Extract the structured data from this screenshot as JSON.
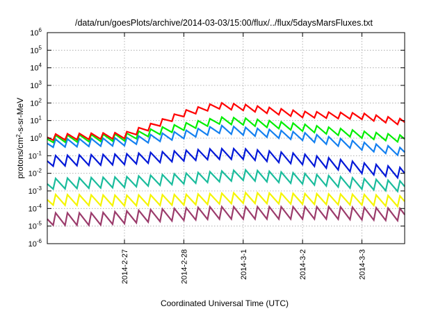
{
  "chart_data": {
    "type": "line",
    "title": "/data/run/goesPlots/archive/2014-03-03/15:00/flux/../flux/5daysMarsFluxes.txt",
    "xlabel": "Coordinated Universal Time (UTC)",
    "ylabel_parts": [
      "protons/cm",
      "2",
      "-s-sr-MeV"
    ],
    "yscale": "log",
    "ylim": [
      1e-06,
      1000000.0
    ],
    "ytick_exponents": [
      -6,
      -5,
      -4,
      -3,
      -2,
      -1,
      0,
      1,
      2,
      3,
      4,
      5,
      6
    ],
    "ytick_base": "10",
    "xlim_days": [
      -2.3,
      3.72
    ],
    "x_ticks": [
      {
        "label": "2014-2-27",
        "day": -1
      },
      {
        "label": "2014-2-28",
        "day": 0
      },
      {
        "label": "2014-3-1",
        "day": 1
      },
      {
        "label": "2014-3-2",
        "day": 2
      },
      {
        "label": "2014-3-3",
        "day": 3
      }
    ],
    "grid": true,
    "sawtooth_period_days": 0.2,
    "series": [
      {
        "color": "#9b3b6b",
        "points": [
          [
            -2.3,
            -4.6
          ],
          [
            -1.5,
            -4.6
          ],
          [
            -0.5,
            -4.4
          ],
          [
            0.5,
            -4.25
          ],
          [
            1.5,
            -4.25
          ],
          [
            2.5,
            -4.25
          ],
          [
            3.72,
            -4.35
          ]
        ],
        "amplitude": 0.7
      },
      {
        "color": "#f5f500",
        "points": [
          [
            -2.3,
            -3.5
          ],
          [
            -1.0,
            -3.55
          ],
          [
            0.0,
            -3.5
          ],
          [
            1.0,
            -3.4
          ],
          [
            2.0,
            -3.45
          ],
          [
            3.0,
            -3.5
          ],
          [
            3.72,
            -3.6
          ]
        ],
        "amplitude": 0.6
      },
      {
        "color": "#1abc9c",
        "points": [
          [
            -2.3,
            -2.6
          ],
          [
            -1.0,
            -2.5
          ],
          [
            0.0,
            -2.3
          ],
          [
            1.0,
            -2.1
          ],
          [
            2.0,
            -2.3
          ],
          [
            3.0,
            -2.6
          ],
          [
            3.72,
            -2.75
          ]
        ],
        "amplitude": 0.6
      },
      {
        "color": "#0018d8",
        "points": [
          [
            -2.3,
            -1.3
          ],
          [
            -1.0,
            -1.2
          ],
          [
            0.0,
            -1.0
          ],
          [
            0.5,
            -0.9
          ],
          [
            1.0,
            -0.9
          ],
          [
            2.0,
            -1.2
          ],
          [
            3.0,
            -1.7
          ],
          [
            3.72,
            -2.0
          ]
        ],
        "amplitude": 0.6
      },
      {
        "color": "#1480f0",
        "points": [
          [
            -2.3,
            -0.3
          ],
          [
            -1.0,
            -0.2
          ],
          [
            -0.5,
            0.0
          ],
          [
            0.0,
            0.2
          ],
          [
            0.6,
            0.5
          ],
          [
            1.0,
            0.4
          ],
          [
            2.0,
            0.1
          ],
          [
            3.0,
            -0.45
          ],
          [
            3.72,
            -0.8
          ]
        ],
        "amplitude": 0.45
      },
      {
        "color": "#00ee00",
        "points": [
          [
            -2.3,
            -0.05
          ],
          [
            -1.0,
            0.05
          ],
          [
            -0.5,
            0.35
          ],
          [
            0.0,
            0.65
          ],
          [
            0.6,
            1.0
          ],
          [
            1.0,
            0.95
          ],
          [
            2.0,
            0.6
          ],
          [
            3.0,
            0.2
          ],
          [
            3.72,
            -0.05
          ]
        ],
        "amplitude": 0.4
      },
      {
        "color": "#ff0000",
        "points": [
          [
            -2.3,
            0.05
          ],
          [
            -1.0,
            0.15
          ],
          [
            -0.6,
            0.6
          ],
          [
            0.0,
            1.4
          ],
          [
            0.55,
            1.85
          ],
          [
            1.0,
            1.75
          ],
          [
            2.0,
            1.35
          ],
          [
            3.0,
            1.25
          ],
          [
            3.72,
            0.9
          ]
        ],
        "amplitude": 0.35
      }
    ]
  }
}
